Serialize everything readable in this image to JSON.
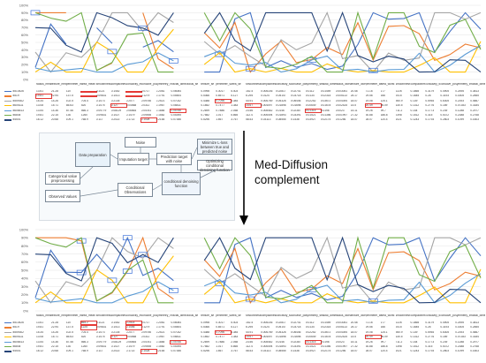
{
  "y_ticks": [
    "100%",
    "90%",
    "80%",
    "70%",
    "60%",
    "50%",
    "40%",
    "30%",
    "20%",
    "10%",
    "0%"
  ],
  "columns": [
    "radius_mean",
    "texture_mean",
    "perimeter_mean",
    "area_mean",
    "smoothness_mean",
    "compactness_mean",
    "concavity_mean",
    "concave_points_mean",
    "symmetry_mean",
    "fractal_dimension_mean",
    "radius_se",
    "texture_se",
    "perimeter_se",
    "area_se",
    "smoothness_se",
    "compactness_se",
    "concavity_se",
    "concave_points_se",
    "symmetry_se",
    "fractal_dimension_se",
    "radius_worst",
    "texture_worst",
    "perimeter_worst",
    "area_worst",
    "smoothness_worst",
    "compactness_worst",
    "concavity_worst",
    "concave_points_worst",
    "symmetry_worst",
    "fractal_dimension_worst"
  ],
  "top_rows": [
    {
      "id": "8510426",
      "color": "#4472c4",
      "cells": [
        "13.61",
        "21.28",
        "110",
        "",
        "0.1121",
        "0.1452",
        "",
        "0.0717",
        "0.2081",
        "0.06064",
        "",
        "0.0998",
        "0.3017",
        "5.403",
        "152.4",
        "0.006146",
        "0.02817",
        "0.02741",
        "0.0112",
        "0.01459",
        "0.003051",
        "20.46",
        "71.16",
        "177",
        "2226",
        "0.1865",
        "0.3179",
        "0.4905",
        "0.2595",
        "0.3813"
      ]
    },
    {
      "id": "8519",
      "color": "#ed7d31",
      "cells": [
        "19.81",
        "22.94",
        "137.5",
        "",
        "0.09831",
        "0.1013",
        "",
        "0.1279",
        "0.1791",
        "0.05504",
        "",
        "0.5366",
        "0.8571",
        "5.127",
        "6.295",
        "0.0124",
        "0.05147",
        "0.03718",
        "0.0134",
        "0.02315",
        "0.005113",
        "25.17",
        "29.56",
        "166",
        "2015",
        "0.1645",
        "0.26",
        "0.3193",
        "0.1605",
        "0.2855"
      ]
    },
    {
      "id": "8559302",
      "color": "#a5a5a5",
      "cells": [
        "15.34",
        "14.26",
        "102.5",
        "704.4",
        "0.1073",
        "0.2135",
        "0.2077",
        "0.09756",
        "0.2521",
        "0.07032",
        "",
        "0.4388",
        "0.7096",
        "3.384",
        "44.91",
        "0.006789",
        "0.05328",
        "0.06446",
        "0.02252",
        "0.03672",
        "0.004394",
        "18.07",
        "19.08",
        "125.1",
        "980.9",
        "0.139",
        "0.5954",
        "0.6305",
        "0.2393",
        "0.4667"
      ]
    },
    {
      "id": "8605111",
      "color": "#ffc000",
      "cells": [
        "13.08",
        "15.71",
        "85.63",
        "520",
        "0.1075",
        "0.127",
        "0.04568",
        "0.0311",
        "0.1967",
        "0.06811",
        "",
        "0.1852",
        "0.7477",
        "1.383",
        "14.67",
        "0.004097",
        "0.01898",
        "0.01698",
        "0.00649",
        "0.01678",
        "0.002425",
        "14.5",
        "20.49",
        "96.09",
        "630.5",
        "0.1312",
        "0.2776",
        "0.189",
        "0.07283",
        "0.3184"
      ]
    },
    {
      "id": "8608513",
      "color": "#5b9bd5",
      "cells": [
        "13.54",
        "14.36",
        "87.46",
        "566.3",
        "0.09779",
        "0.08129",
        "0.06664",
        "0.04781",
        "0.1885",
        "0.05766",
        "",
        "0.2699",
        "0.7886",
        "2.058",
        "23.56",
        "0.008462",
        "0.0146",
        "0.02387",
        "0.01315",
        "0.0198",
        "0.0023",
        "15.11",
        "19.26",
        "99.7",
        "711.2",
        "0.144",
        "0.1773",
        "0.239",
        "0.1288",
        "0.2977"
      ]
    },
    {
      "id": "86844",
      "color": "#70ad47",
      "cells": [
        "19.81",
        "22.15",
        "130",
        "1260",
        "0.09831",
        "0.1027",
        "0.1479",
        "0.09498",
        "0.1582",
        "0.05395",
        "",
        "0.7582",
        "1.017",
        "5.865",
        "112.4",
        "0.006494",
        "0.01893",
        "0.03391",
        "0.01521",
        "0.01356",
        "0.001997",
        "27.32",
        "30.88",
        "186.8",
        "2398",
        "0.1512",
        "0.315",
        "0.5372",
        "0.2388",
        "0.2768"
      ]
    },
    {
      "id": "84501",
      "color": "#264478",
      "cells": [
        "18.12",
        "20.68",
        "109.1",
        "768.9",
        "0.117",
        "0.2022",
        "0.1722",
        "0.1028",
        "0.2164",
        "0.07356",
        "",
        "0.5296",
        "1.667",
        "3.767",
        "58.53",
        "0.03113",
        "0.08555",
        "0.1438",
        "0.03927",
        "0.02175",
        "0.01256",
        "18.07",
        "28.07",
        "120.4",
        "1021",
        "0.1243",
        "0.1793",
        "0.2803",
        "0.1099",
        "0.1603"
      ]
    }
  ],
  "bottom_rows": [
    {
      "id": "8510426",
      "color": "#4472c4",
      "cells": [
        "13.61",
        "21.28",
        "110",
        "864.2",
        "0.1121",
        "0.1452",
        "0.2514",
        "0.0717",
        "0.2081",
        "0.06064",
        "",
        "0.0998",
        "0.3017",
        "5.403",
        "152.4",
        "0.006146",
        "0.02817",
        "0.02741",
        "0.0112",
        "0.01459",
        "0.003051",
        "20.46",
        "71.16",
        "177",
        "2226",
        "0.1865",
        "0.3179",
        "0.4905",
        "0.2595",
        "0.3813"
      ]
    },
    {
      "id": "8519",
      "color": "#ed7d31",
      "cells": [
        "19.81",
        "22.94",
        "137.5",
        "1225",
        "0.09831",
        "0.1013",
        "0.1456",
        "0.1279",
        "0.1791",
        "0.05504",
        "",
        "0.5366",
        "0.8571",
        "5.127",
        "6.295",
        "0.0124",
        "0.05147",
        "0.03718",
        "0.0134",
        "0.02315",
        "0.005113",
        "25.17",
        "29.56",
        "166",
        "2015",
        "0.1645",
        "0.26",
        "0.3193",
        "0.1605",
        "0.2855"
      ]
    },
    {
      "id": "8559302",
      "color": "#a5a5a5",
      "cells": [
        "15.34",
        "14.26",
        "102.5",
        "704.4",
        "0.1073",
        "0.2135",
        "0.2077",
        "0.09756",
        "0.2521",
        "0.07032",
        "",
        "0.4388",
        "0.7096",
        "3.384",
        "44.91",
        "0.006789",
        "0.05328",
        "0.06446",
        "0.02252",
        "0.03672",
        "0.004394",
        "18.07",
        "19.08",
        "125.1",
        "980.9",
        "0.139",
        "0.5954",
        "0.6305",
        "0.2393",
        "0.4667"
      ]
    },
    {
      "id": "8605111",
      "color": "#ffc000",
      "cells": [
        "13.08",
        "15.71",
        "85.63",
        "520",
        "0.1075",
        "0.127",
        "0.04568",
        "0.0311",
        "0.1967",
        "0.06811",
        "",
        "0.1852",
        "0.7477",
        "1.383",
        "14.67",
        "0.004097",
        "0.01898",
        "0.01698",
        "0.00649",
        "0.01678",
        "0.002425",
        "14.5",
        "20.49",
        "96.09",
        "630.5",
        "0.1312",
        "0.2776",
        "0.189",
        "0.07283",
        "0.3184"
      ]
    },
    {
      "id": "8608513",
      "color": "#5b9bd5",
      "cells": [
        "13.54",
        "14.36",
        "87.46",
        "566.3",
        "0.09779",
        "0.08129",
        "0.06664",
        "0.04781",
        "0.1885",
        "0.05766",
        "",
        "0.2699",
        "0.7886",
        "2.058",
        "23.56",
        "0.008462",
        "0.0146",
        "0.02387",
        "0.01315",
        "0.0198",
        "0.0023",
        "15.11",
        "19.26",
        "99.7",
        "711.2",
        "0.144",
        "0.1773",
        "0.239",
        "0.1288",
        "0.2977"
      ]
    },
    {
      "id": "86844",
      "color": "#70ad47",
      "cells": [
        "19.81",
        "22.15",
        "130",
        "1260",
        "0.09831",
        "0.1027",
        "0.1479",
        "0.09498",
        "0.1582",
        "0.05395",
        "",
        "0.7582",
        "1.017",
        "5.865",
        "112.4",
        "0.006494",
        "0.01893",
        "0.03391",
        "0.01521",
        "0.01356",
        "0.001997",
        "27.32",
        "30.88",
        "186.8",
        "2398",
        "0.1512",
        "0.315",
        "0.5372",
        "0.2388",
        "0.2768"
      ]
    },
    {
      "id": "84501",
      "color": "#264478",
      "cells": [
        "18.12",
        "20.68",
        "109.1",
        "768.9",
        "0.117",
        "0.2022",
        "0.1722",
        "0.1028",
        "0.2164",
        "0.07356",
        "",
        "0.5296",
        "1.667",
        "3.767",
        "58.53",
        "0.03113",
        "0.08555",
        "0.1438",
        "0.03927",
        "0.02175",
        "0.01256",
        "18.07",
        "28.07",
        "120.4",
        "1021",
        "0.1243",
        "0.1793",
        "0.2803",
        "0.1099",
        "0.1603"
      ]
    }
  ],
  "diagram": {
    "noise_label": "Noise",
    "imputation_label": "Imputation target",
    "prediction_label": "Prediction target with noise",
    "minimize_label": "Minimize L-loss between true and predicted noise",
    "optimizing_label": "Optimizing conditional denoising function",
    "data_prep_label": "Data preparation",
    "categorical_label": "Categorical value preprocessing",
    "observed_label": "Observed Values",
    "conditional_label": "Conditional Observations",
    "denoise_label": "conditional denoising function"
  },
  "arrow_label_line1": "Med-Diffusion",
  "arrow_label_line2": "complement"
}
